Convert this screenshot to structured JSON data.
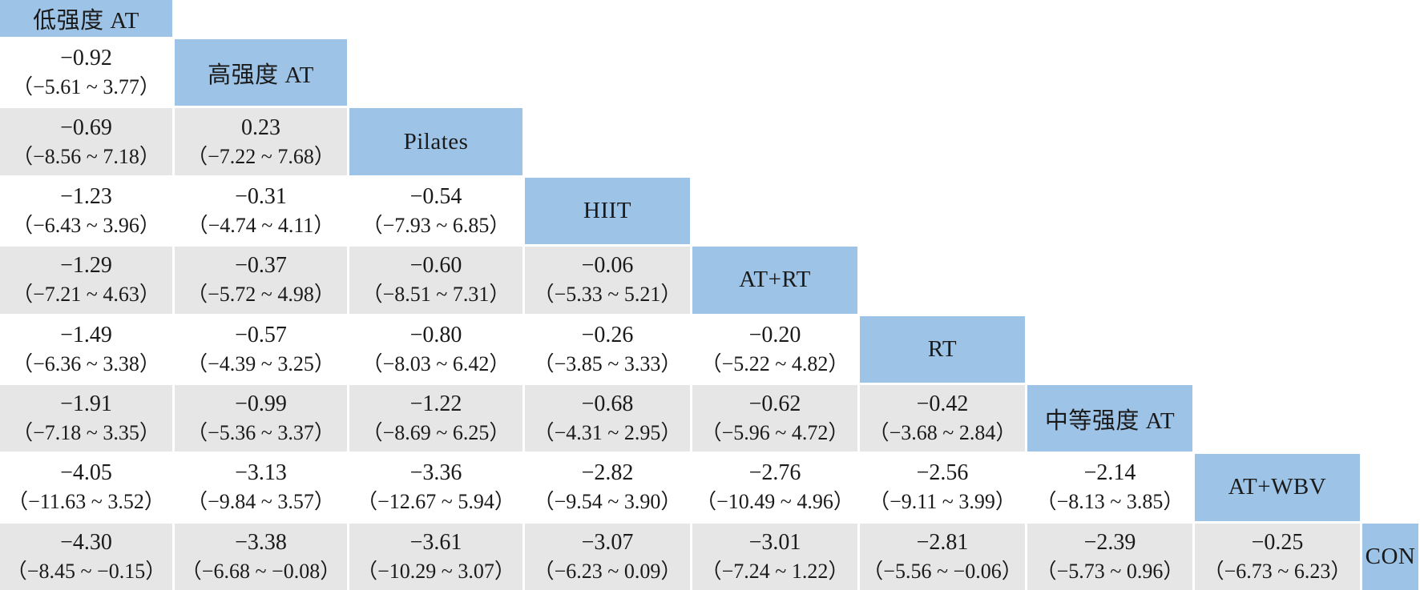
{
  "figure": {
    "description_labels": [],
    "colors": {
      "diagonal_bg": "#9DC3E6",
      "stripe_row_bg": "#E7E6E6",
      "plain_row_bg": "#FFFFFF",
      "text": "#1A1A1A"
    }
  },
  "table": {
    "treatments": [
      "低强度 AT",
      "高强度 AT",
      "Pilates",
      "HIIT",
      "AT+RT",
      "RT",
      "中等强度 AT",
      "AT+WBV",
      "CON"
    ],
    "rows": [
      {
        "cells": [
          {
            "value": "−0.92",
            "ci": "（−5.61 ~ 3.77）"
          }
        ]
      },
      {
        "cells": [
          {
            "value": "−0.69",
            "ci": "（−8.56 ~ 7.18）"
          },
          {
            "value": "0.23",
            "ci": "（−7.22 ~ 7.68）"
          }
        ]
      },
      {
        "cells": [
          {
            "value": "−1.23",
            "ci": "（−6.43 ~ 3.96）"
          },
          {
            "value": "−0.31",
            "ci": "（−4.74 ~ 4.11）"
          },
          {
            "value": "−0.54",
            "ci": "（−7.93 ~ 6.85）"
          }
        ]
      },
      {
        "cells": [
          {
            "value": "−1.29",
            "ci": "（−7.21 ~ 4.63）"
          },
          {
            "value": "−0.37",
            "ci": "（−5.72 ~ 4.98）"
          },
          {
            "value": "−0.60",
            "ci": "（−8.51 ~ 7.31）"
          },
          {
            "value": "−0.06",
            "ci": "（−5.33 ~ 5.21）"
          }
        ]
      },
      {
        "cells": [
          {
            "value": "−1.49",
            "ci": "（−6.36 ~ 3.38）"
          },
          {
            "value": "−0.57",
            "ci": "（−4.39 ~ 3.25）"
          },
          {
            "value": "−0.80",
            "ci": "（−8.03 ~ 6.42）"
          },
          {
            "value": "−0.26",
            "ci": "（−3.85 ~ 3.33）"
          },
          {
            "value": "−0.20",
            "ci": "（−5.22 ~ 4.82）"
          }
        ]
      },
      {
        "cells": [
          {
            "value": "−1.91",
            "ci": "（−7.18 ~ 3.35）"
          },
          {
            "value": "−0.99",
            "ci": "（−5.36 ~ 3.37）"
          },
          {
            "value": "−1.22",
            "ci": "（−8.69 ~ 6.25）"
          },
          {
            "value": "−0.68",
            "ci": "（−4.31 ~ 2.95）"
          },
          {
            "value": "−0.62",
            "ci": "（−5.96 ~ 4.72）"
          },
          {
            "value": "−0.42",
            "ci": "（−3.68 ~ 2.84）"
          }
        ]
      },
      {
        "cells": [
          {
            "value": "−4.05",
            "ci": "（−11.63 ~ 3.52）"
          },
          {
            "value": "−3.13",
            "ci": "（−9.84 ~ 3.57）"
          },
          {
            "value": "−3.36",
            "ci": "（−12.67 ~ 5.94）"
          },
          {
            "value": "−2.82",
            "ci": "（−9.54 ~ 3.90）"
          },
          {
            "value": "−2.76",
            "ci": "（−10.49 ~ 4.96）"
          },
          {
            "value": "−2.56",
            "ci": "（−9.11 ~ 3.99）"
          },
          {
            "value": "−2.14",
            "ci": "（−8.13 ~ 3.85）"
          }
        ]
      },
      {
        "cells": [
          {
            "value": "−4.30",
            "ci": "（−8.45 ~ −0.15）"
          },
          {
            "value": "−3.38",
            "ci": "（−6.68 ~ −0.08）"
          },
          {
            "value": "−3.61",
            "ci": "（−10.29 ~ 3.07）"
          },
          {
            "value": "−3.07",
            "ci": "（−6.23 ~ 0.09）"
          },
          {
            "value": "−3.01",
            "ci": "（−7.24 ~ 1.22）"
          },
          {
            "value": "−2.81",
            "ci": "（−5.56 ~ −0.06）"
          },
          {
            "value": "−2.39",
            "ci": "（−5.73 ~ 0.96）"
          },
          {
            "value": "−0.25",
            "ci": "（−6.73 ~ 6.23）"
          }
        ]
      }
    ]
  }
}
